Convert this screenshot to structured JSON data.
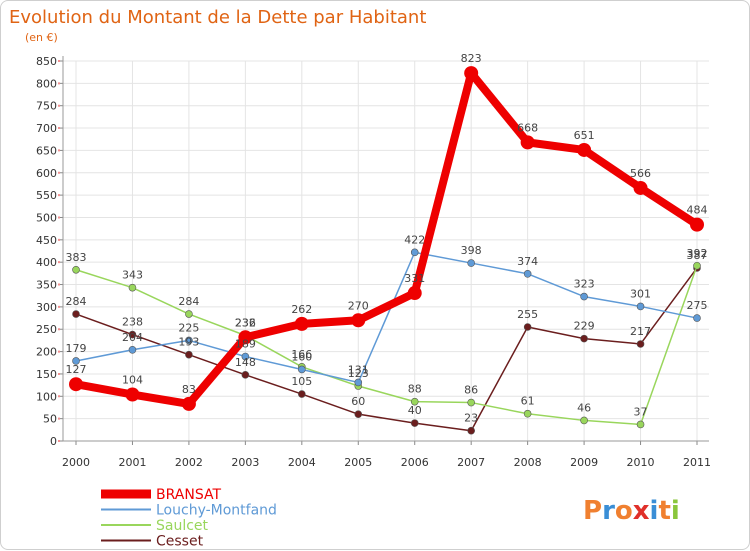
{
  "chart_data": {
    "type": "line",
    "title": "Evolution du Montant de la Dette par Habitant",
    "subtitle": "(en €)",
    "x": [
      "2000",
      "2001",
      "2002",
      "2003",
      "2004",
      "2005",
      "2006",
      "2007",
      "2008",
      "2009",
      "2010",
      "2011"
    ],
    "ylim": [
      0,
      850
    ],
    "yticks": [
      0,
      50,
      100,
      150,
      200,
      250,
      300,
      350,
      400,
      450,
      500,
      550,
      600,
      650,
      700,
      750,
      800,
      850
    ],
    "grid": true,
    "legend_position": "bottom-left",
    "series": [
      {
        "name": "BRANSAT",
        "color": "#ee0000",
        "values": [
          127,
          104,
          83,
          232,
          262,
          270,
          331,
          823,
          668,
          651,
          566,
          484
        ]
      },
      {
        "name": "Louchy-Montfand",
        "color": "#5f9ad6",
        "values": [
          179,
          204,
          225,
          189,
          160,
          131,
          422,
          398,
          374,
          323,
          301,
          275
        ]
      },
      {
        "name": "Saulcet",
        "color": "#99d65c",
        "values": [
          383,
          343,
          284,
          236,
          166,
          123,
          88,
          86,
          61,
          46,
          37,
          392
        ]
      },
      {
        "name": "Cesset",
        "color": "#6b1e1e",
        "values": [
          284,
          238,
          193,
          148,
          105,
          60,
          40,
          23,
          255,
          229,
          217,
          387
        ]
      }
    ]
  },
  "logo": {
    "text": "Proxiti",
    "colors": [
      "#f08030",
      "#3a8ed6",
      "#f08030",
      "#e0302a",
      "#3a8ed6",
      "#f08030",
      "#8ac63c"
    ]
  }
}
